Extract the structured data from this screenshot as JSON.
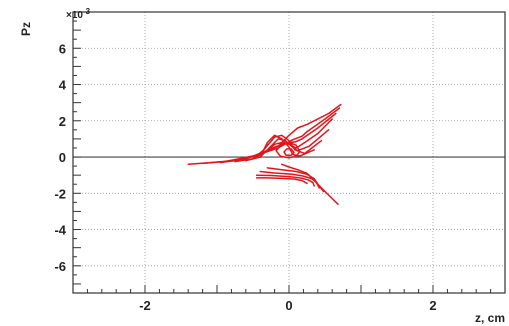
{
  "chart_data": {
    "type": "line",
    "title": "",
    "xlabel": "z, cm",
    "ylabel": "Pz",
    "y_multiplier_label": "×10",
    "y_multiplier_exponent": "-3",
    "xlim": [
      -3.0,
      3.0
    ],
    "ylim": [
      -7.5,
      8.0
    ],
    "x_ticks": [
      -2,
      0,
      2
    ],
    "x_tick_labels": [
      "-2",
      "0",
      "2"
    ],
    "y_ticks": [
      -6,
      -4,
      -2,
      0,
      2,
      4,
      6
    ],
    "y_tick_labels": [
      "-6",
      "-4",
      "-2",
      "0",
      "2",
      "4",
      "6"
    ],
    "grid": true,
    "zero_line": true,
    "line_color": "#e0161b",
    "series": [
      {
        "x": [
          -1.4,
          -0.9,
          -0.5,
          -0.15,
          0.0,
          0.12,
          0.25,
          0.55,
          0.72
        ],
        "y": [
          -0.4,
          -0.25,
          0.05,
          0.6,
          1.2,
          1.6,
          1.8,
          2.4,
          2.9
        ]
      },
      {
        "x": [
          -1.2,
          -0.8,
          -0.45,
          -0.15,
          0.05,
          0.18,
          0.25,
          0.5,
          0.7
        ],
        "y": [
          -0.35,
          -0.2,
          0.1,
          0.5,
          0.95,
          1.15,
          1.4,
          2.1,
          2.7
        ]
      },
      {
        "x": [
          -0.95,
          -0.65,
          -0.4,
          -0.2,
          -0.05,
          0.1,
          0.18,
          0.4,
          0.65
        ],
        "y": [
          -0.3,
          -0.15,
          0.15,
          0.55,
          0.75,
          0.85,
          1.0,
          1.6,
          2.4
        ]
      },
      {
        "x": [
          -0.75,
          -0.5,
          -0.3,
          -0.2,
          -0.1,
          0.0,
          0.1,
          0.22,
          0.4,
          0.6
        ],
        "y": [
          -0.25,
          -0.1,
          0.35,
          0.7,
          0.8,
          0.7,
          0.5,
          0.8,
          1.3,
          2.1
        ]
      },
      {
        "x": [
          -0.6,
          -0.4,
          -0.25,
          -0.15,
          -0.05,
          0.05,
          0.12,
          0.28,
          0.55
        ],
        "y": [
          -0.2,
          0.0,
          0.6,
          1.0,
          0.9,
          0.55,
          0.35,
          0.6,
          1.5
        ]
      },
      {
        "x": [
          -0.5,
          -0.35,
          -0.2,
          -0.1,
          0.0,
          0.08,
          0.22,
          0.45
        ],
        "y": [
          -0.1,
          0.4,
          1.1,
          1.2,
          0.9,
          0.4,
          0.2,
          0.9
        ]
      },
      {
        "x": [
          -0.4,
          -0.3,
          -0.2,
          -0.1,
          0.0,
          0.05,
          0.15,
          0.35
        ],
        "y": [
          0.0,
          0.8,
          1.2,
          1.0,
          0.55,
          0.15,
          0.05,
          0.4
        ]
      },
      {
        "x": [
          -0.1,
          0.0,
          0.1,
          0.15,
          0.1,
          0.0,
          -0.12,
          -0.18,
          -0.1
        ],
        "y": [
          0.7,
          0.8,
          0.65,
          0.3,
          0.05,
          -0.05,
          0.05,
          0.35,
          0.7
        ]
      },
      {
        "x": [
          -0.03,
          0.03,
          0.07,
          0.03,
          -0.04,
          -0.07,
          -0.03
        ],
        "y": [
          0.45,
          0.45,
          0.25,
          0.1,
          0.1,
          0.28,
          0.45
        ]
      },
      {
        "x": [
          -0.1,
          0.0,
          0.12,
          0.25,
          0.35,
          0.45,
          0.55,
          0.68
        ],
        "y": [
          -0.4,
          -0.55,
          -0.7,
          -0.9,
          -1.3,
          -1.7,
          -2.1,
          -2.6
        ]
      },
      {
        "x": [
          -0.3,
          -0.1,
          0.1,
          0.25,
          0.35,
          0.42,
          0.48
        ],
        "y": [
          -0.6,
          -0.7,
          -0.8,
          -0.95,
          -1.2,
          -1.6,
          -1.9
        ]
      },
      {
        "x": [
          -0.4,
          -0.2,
          0.05,
          0.2,
          0.32,
          0.38,
          0.42
        ],
        "y": [
          -0.8,
          -0.88,
          -0.95,
          -1.05,
          -1.2,
          -1.4,
          -1.7
        ]
      },
      {
        "x": [
          -0.45,
          -0.25,
          0.0,
          0.15,
          0.26,
          0.33,
          0.35
        ],
        "y": [
          -1.0,
          -1.02,
          -1.08,
          -1.15,
          -1.25,
          -1.4,
          -1.6
        ]
      },
      {
        "x": [
          -0.45,
          -0.3,
          -0.1,
          0.08,
          0.18,
          0.25
        ],
        "y": [
          -1.15,
          -1.15,
          -1.18,
          -1.22,
          -1.3,
          -1.45
        ]
      }
    ]
  }
}
